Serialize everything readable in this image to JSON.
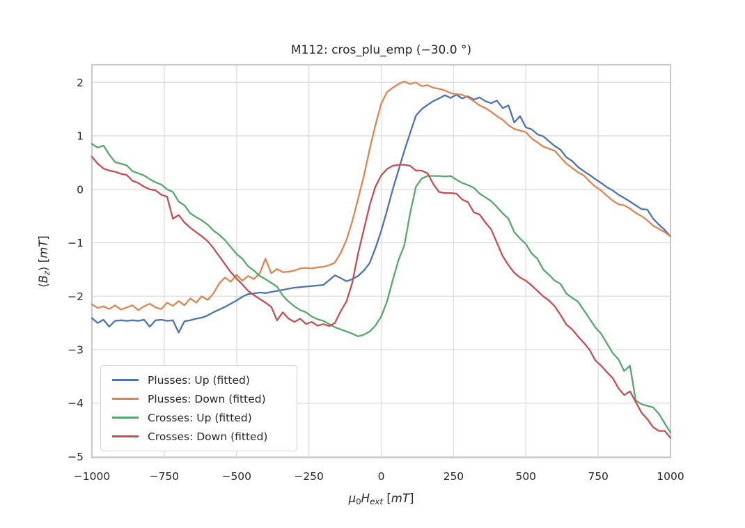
{
  "figure": {
    "background": "#ffffff",
    "text_color": "#262626",
    "grid_color": "#dcdcdc",
    "frame_color": "#c3c3c3"
  },
  "labels": {
    "ylabel_parts": [
      {
        "t": "⟨",
        "i": false,
        "sub": false
      },
      {
        "t": "B",
        "i": true,
        "sub": false
      },
      {
        "t": "z",
        "i": true,
        "sub": true
      },
      {
        "t": "⟩ [",
        "i": false,
        "sub": false
      },
      {
        "t": "mT",
        "i": true,
        "sub": false
      },
      {
        "t": "]",
        "i": false,
        "sub": false
      }
    ],
    "xlabel_parts": [
      {
        "t": "μ",
        "i": true,
        "sub": false
      },
      {
        "t": "0",
        "i": false,
        "sub": true
      },
      {
        "t": "H",
        "i": true,
        "sub": false
      },
      {
        "t": "ext",
        "i": true,
        "sub": true
      },
      {
        "t": " [",
        "i": false,
        "sub": false
      },
      {
        "t": "mT",
        "i": true,
        "sub": false
      },
      {
        "t": "]",
        "i": false,
        "sub": false
      }
    ]
  },
  "chart_data": {
    "type": "line",
    "title": "M112: cros_plu_emp (−30.0 °)",
    "xlabel": "μ₀H_ext [mT]",
    "ylabel": "⟨B_z⟩ [mT]",
    "xlim": [
      -1000,
      1000
    ],
    "ylim": [
      -5.02,
      2.33
    ],
    "xticks": [
      -1000,
      -750,
      -500,
      -250,
      0,
      250,
      500,
      750,
      1000
    ],
    "yticks": [
      2,
      1,
      0,
      -1,
      -2,
      -3,
      -4,
      -5
    ],
    "grid": true,
    "legend_position": "lower left",
    "x": [
      -1000,
      -980,
      -960,
      -940,
      -920,
      -900,
      -880,
      -860,
      -840,
      -820,
      -800,
      -780,
      -760,
      -740,
      -720,
      -700,
      -680,
      -660,
      -640,
      -620,
      -600,
      -580,
      -560,
      -540,
      -520,
      -500,
      -480,
      -460,
      -440,
      -420,
      -400,
      -380,
      -360,
      -340,
      -320,
      -300,
      -280,
      -260,
      -240,
      -220,
      -200,
      -180,
      -160,
      -140,
      -120,
      -100,
      -80,
      -60,
      -40,
      -20,
      0,
      20,
      40,
      60,
      80,
      100,
      120,
      140,
      160,
      180,
      200,
      220,
      240,
      260,
      280,
      300,
      320,
      340,
      360,
      380,
      400,
      420,
      440,
      460,
      480,
      500,
      520,
      540,
      560,
      580,
      600,
      620,
      640,
      660,
      680,
      700,
      720,
      740,
      760,
      780,
      800,
      820,
      840,
      860,
      880,
      900,
      920,
      940,
      960,
      980,
      1000
    ],
    "series": [
      {
        "name": "Plusses: Up (fitted)",
        "color": "#4C72B0",
        "values": [
          -2.41,
          -2.5,
          -2.44,
          -2.57,
          -2.46,
          -2.45,
          -2.46,
          -2.45,
          -2.46,
          -2.44,
          -2.57,
          -2.45,
          -2.44,
          -2.46,
          -2.45,
          -2.68,
          -2.47,
          -2.45,
          -2.42,
          -2.4,
          -2.36,
          -2.3,
          -2.25,
          -2.2,
          -2.14,
          -2.08,
          -2.01,
          -1.96,
          -1.95,
          -1.93,
          -1.94,
          -1.92,
          -1.9,
          -1.88,
          -1.86,
          -1.84,
          -1.83,
          -1.82,
          -1.81,
          -1.8,
          -1.79,
          -1.7,
          -1.61,
          -1.66,
          -1.72,
          -1.68,
          -1.62,
          -1.52,
          -1.38,
          -1.1,
          -0.78,
          -0.4,
          0.0,
          0.36,
          0.72,
          1.05,
          1.38,
          1.5,
          1.58,
          1.65,
          1.7,
          1.76,
          1.71,
          1.77,
          1.7,
          1.74,
          1.68,
          1.72,
          1.65,
          1.61,
          1.66,
          1.52,
          1.57,
          1.25,
          1.37,
          1.16,
          1.12,
          1.03,
          0.99,
          0.9,
          0.81,
          0.74,
          0.6,
          0.53,
          0.42,
          0.34,
          0.27,
          0.19,
          0.12,
          0.04,
          -0.02,
          -0.1,
          -0.16,
          -0.23,
          -0.3,
          -0.37,
          -0.38,
          -0.55,
          -0.66,
          -0.76,
          -0.88
        ]
      },
      {
        "name": "Plusses: Down (fitted)",
        "color": "#DD8452",
        "values": [
          -2.15,
          -2.22,
          -2.19,
          -2.24,
          -2.17,
          -2.25,
          -2.21,
          -2.17,
          -2.26,
          -2.19,
          -2.14,
          -2.21,
          -2.24,
          -2.12,
          -2.18,
          -2.09,
          -2.17,
          -2.04,
          -2.12,
          -2.0,
          -2.07,
          -1.95,
          -1.76,
          -1.65,
          -1.73,
          -1.6,
          -1.71,
          -1.62,
          -1.68,
          -1.57,
          -1.3,
          -1.57,
          -1.49,
          -1.55,
          -1.54,
          -1.52,
          -1.48,
          -1.47,
          -1.48,
          -1.46,
          -1.45,
          -1.42,
          -1.37,
          -1.19,
          -0.95,
          -0.6,
          -0.18,
          0.25,
          0.75,
          1.2,
          1.6,
          1.82,
          1.9,
          1.97,
          2.02,
          1.97,
          2.0,
          1.93,
          1.95,
          1.9,
          1.88,
          1.85,
          1.8,
          1.78,
          1.77,
          1.72,
          1.65,
          1.57,
          1.52,
          1.45,
          1.37,
          1.3,
          1.2,
          1.13,
          1.1,
          1.07,
          0.95,
          0.88,
          0.8,
          0.76,
          0.72,
          0.6,
          0.48,
          0.4,
          0.32,
          0.26,
          0.15,
          0.05,
          -0.02,
          -0.12,
          -0.21,
          -0.28,
          -0.3,
          -0.36,
          -0.44,
          -0.5,
          -0.58,
          -0.68,
          -0.74,
          -0.8,
          -0.88
        ]
      },
      {
        "name": "Crosses: Up (fitted)",
        "color": "#55A868",
        "values": [
          0.85,
          0.78,
          0.82,
          0.65,
          0.51,
          0.48,
          0.45,
          0.34,
          0.3,
          0.26,
          0.19,
          0.13,
          0.09,
          0.0,
          -0.05,
          -0.23,
          -0.3,
          -0.45,
          -0.52,
          -0.58,
          -0.66,
          -0.77,
          -0.85,
          -0.95,
          -1.08,
          -1.21,
          -1.3,
          -1.44,
          -1.52,
          -1.62,
          -1.68,
          -1.75,
          -1.82,
          -1.99,
          -2.1,
          -2.19,
          -2.26,
          -2.3,
          -2.38,
          -2.43,
          -2.46,
          -2.52,
          -2.58,
          -2.62,
          -2.66,
          -2.7,
          -2.75,
          -2.72,
          -2.66,
          -2.55,
          -2.38,
          -2.1,
          -1.7,
          -1.32,
          -1.05,
          -0.45,
          0.05,
          0.2,
          0.25,
          0.25,
          0.25,
          0.24,
          0.25,
          0.18,
          0.12,
          0.08,
          0.03,
          -0.08,
          -0.15,
          -0.22,
          -0.33,
          -0.45,
          -0.55,
          -0.8,
          -0.92,
          -1.02,
          -1.2,
          -1.3,
          -1.5,
          -1.6,
          -1.71,
          -1.77,
          -1.95,
          -2.03,
          -2.1,
          -2.26,
          -2.42,
          -2.58,
          -2.7,
          -2.88,
          -3.06,
          -3.18,
          -3.4,
          -3.3,
          -3.95,
          -4.02,
          -4.05,
          -4.08,
          -4.2,
          -4.38,
          -4.55
        ]
      },
      {
        "name": "Crosses: Down (fitted)",
        "color": "#C44E52",
        "values": [
          0.61,
          0.48,
          0.39,
          0.35,
          0.33,
          0.29,
          0.27,
          0.16,
          0.12,
          0.05,
          0.0,
          -0.02,
          -0.1,
          -0.14,
          -0.55,
          -0.48,
          -0.62,
          -0.72,
          -0.8,
          -0.88,
          -0.97,
          -1.1,
          -1.25,
          -1.4,
          -1.55,
          -1.67,
          -1.78,
          -1.9,
          -1.98,
          -2.05,
          -2.12,
          -2.2,
          -2.45,
          -2.3,
          -2.42,
          -2.48,
          -2.42,
          -2.52,
          -2.48,
          -2.55,
          -2.52,
          -2.56,
          -2.5,
          -2.28,
          -2.1,
          -1.75,
          -1.2,
          -0.75,
          -0.3,
          0.05,
          0.26,
          0.38,
          0.44,
          0.46,
          0.46,
          0.44,
          0.35,
          0.35,
          0.3,
          0.1,
          -0.05,
          -0.07,
          -0.07,
          -0.08,
          -0.19,
          -0.24,
          -0.43,
          -0.47,
          -0.62,
          -0.75,
          -1.0,
          -1.25,
          -1.42,
          -1.56,
          -1.65,
          -1.71,
          -1.8,
          -1.9,
          -2.0,
          -2.08,
          -2.19,
          -2.35,
          -2.53,
          -2.62,
          -2.75,
          -2.87,
          -3.0,
          -3.2,
          -3.3,
          -3.42,
          -3.53,
          -3.72,
          -3.85,
          -3.78,
          -3.98,
          -4.18,
          -4.3,
          -4.45,
          -4.52,
          -4.52,
          -4.65
        ]
      }
    ]
  }
}
